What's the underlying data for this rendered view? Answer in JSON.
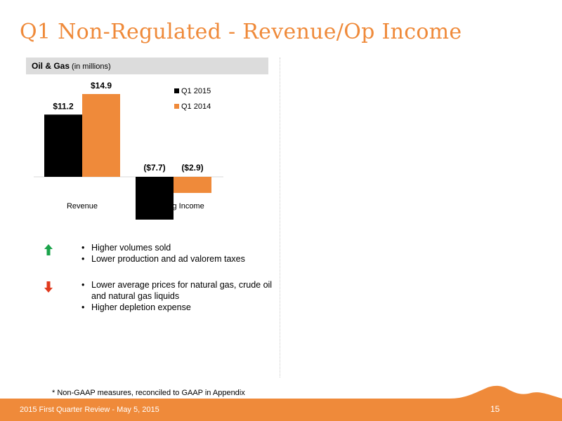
{
  "slide": {
    "title": "Q1 Non-Regulated - Revenue/Op Income",
    "section_header": {
      "main": "Oil & Gas",
      "sub": "(in millions)"
    },
    "footnote": "* Non-GAAP measures, reconciled to GAAP in Appendix",
    "footer_text": "2015 First Quarter Review - May 5, 2015",
    "page_number": "15"
  },
  "colors": {
    "accent": "#ef8a3a",
    "positive_arrow": "#1aa34a",
    "negative_arrow": "#e03a1e",
    "series_q1_2015": "#000000",
    "series_q1_2014": "#ef8a3a"
  },
  "chart_data": {
    "type": "bar",
    "categories": [
      "Revenue",
      "Operating Income"
    ],
    "series": [
      {
        "name": "Q1 2015",
        "values": [
          11.2,
          -7.7
        ],
        "labels": [
          "$11.2",
          "($7.7)"
        ]
      },
      {
        "name": "Q1 2014",
        "values": [
          14.9,
          -2.9
        ],
        "labels": [
          "$14.9",
          "($2.9)"
        ]
      }
    ],
    "legend": "top-right",
    "grid": false
  },
  "bullets_positive": {
    "icon": "arrow-up-icon",
    "items": [
      "Higher volumes sold",
      "Lower production and ad valorem taxes"
    ]
  },
  "bullets_negative": {
    "icon": "arrow-down-icon",
    "items": [
      "Lower average prices for natural gas, crude oil and natural gas liquids",
      "Higher depletion expense"
    ]
  }
}
